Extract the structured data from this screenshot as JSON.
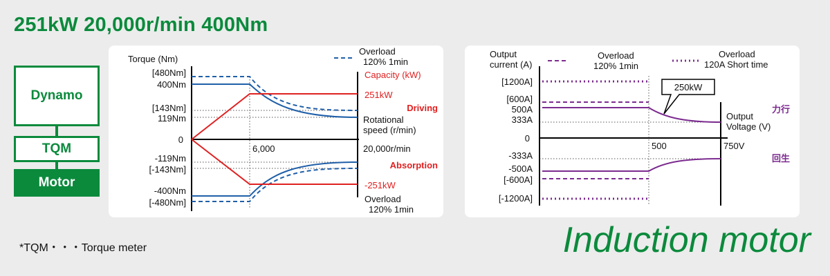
{
  "heading": "251kW  20,000r/min  400Nm",
  "blocks": {
    "dynamo": "Dynamo",
    "tqm": "TQM",
    "motor": "Motor"
  },
  "footnote": "*TQM・・・Torque meter",
  "title": "Induction motor",
  "chart1": {
    "y_axis_label": "Torque (Nm)",
    "legend_overload": "Overload",
    "legend_overload_sub": "120% 1min",
    "capacity_label": "Capacity (kW)",
    "ticks": {
      "p480": "[480Nm]",
      "p400": "400Nm",
      "p143": "[143Nm]",
      "p119": "119Nm",
      "zero": "0",
      "n119": "-119Nm",
      "n143": "[-143Nm]",
      "n400": "-400Nm",
      "n480": "[-480Nm]"
    },
    "x_tick": "6,000",
    "x_end": "20,000r/min",
    "power_pos": "251kW",
    "power_neg": "-251kW",
    "driving": "Driving",
    "absorption": "Absorption",
    "x_axis_label_1": "Rotational",
    "x_axis_label_2": "speed (r/min)",
    "bottom_overload": "Overload",
    "bottom_overload_sub": "120% 1min",
    "colors": {
      "torque": "#1f5fa8",
      "power": "#e02020"
    }
  },
  "chart2": {
    "y_axis_label_1": "Output",
    "y_axis_label_2": "current (A)",
    "legend1": "Overload",
    "legend1_sub": "120% 1min",
    "legend2": "Overload",
    "legend2_sub": "120A Short time",
    "ticks": {
      "p1200": "[1200A]",
      "p600": "[600A]",
      "p500": "500A",
      "p333": "333A",
      "zero": "0",
      "n333": "-333A",
      "n500": "-500A",
      "n600": "[-600A]",
      "n1200": "[-1200A]"
    },
    "x_tick": "500",
    "x_end": "750V",
    "callout": "250kW",
    "x_axis_label_1": "Output",
    "x_axis_label_2": "Voltage (V)",
    "powering": "力行",
    "regen": "回生",
    "colors": {
      "current": "#7b2a8f"
    }
  }
}
